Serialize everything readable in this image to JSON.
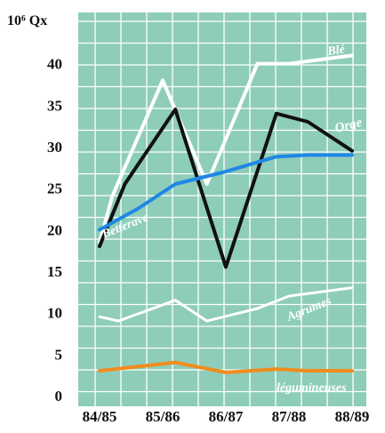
{
  "chart_data": {
    "type": "line",
    "title": "",
    "ylabel": "10⁶ Qx",
    "xlabel": "",
    "categories": [
      "84/85",
      "85/86",
      "86/87",
      "87/88",
      "88/89"
    ],
    "ylim": [
      0,
      45
    ],
    "yticks": [
      0,
      5,
      10,
      15,
      20,
      25,
      30,
      35,
      40
    ],
    "grid": true,
    "background_color": "#8ecdb9",
    "grid_color": "#ffffff",
    "legend": "inline labels",
    "series": [
      {
        "name": "Blé",
        "color": "#ffffff",
        "x": [
          0,
          0.2,
          1,
          1.7,
          2.5,
          3,
          4
        ],
        "values": [
          18.5,
          24,
          38,
          25.5,
          40,
          40,
          41
        ]
      },
      {
        "name": "Betterave",
        "color": "#111111",
        "x": [
          0,
          0.4,
          1.2,
          2,
          2.8,
          3.3,
          4
        ],
        "values": [
          18,
          25.5,
          34.5,
          15.5,
          34,
          33,
          29.5
        ]
      },
      {
        "name": "Orge",
        "color": "#1e88e5",
        "x": [
          0,
          0.6,
          1.2,
          2,
          2.8,
          3.3,
          4
        ],
        "values": [
          20,
          22.5,
          25.5,
          27,
          28.8,
          29,
          29
        ]
      },
      {
        "name": "Agrumes",
        "color": "#ffffff",
        "x": [
          0,
          0.3,
          1.2,
          1.7,
          2.5,
          3,
          4
        ],
        "values": [
          9.5,
          9,
          11.5,
          9,
          10.5,
          12,
          13
        ]
      },
      {
        "name": "légumineuses",
        "color": "#f08c1e",
        "x": [
          0,
          0.6,
          1.2,
          2,
          2.8,
          3.3,
          4
        ],
        "values": [
          3,
          3.5,
          4,
          2.8,
          3.2,
          3,
          3
        ]
      }
    ]
  }
}
